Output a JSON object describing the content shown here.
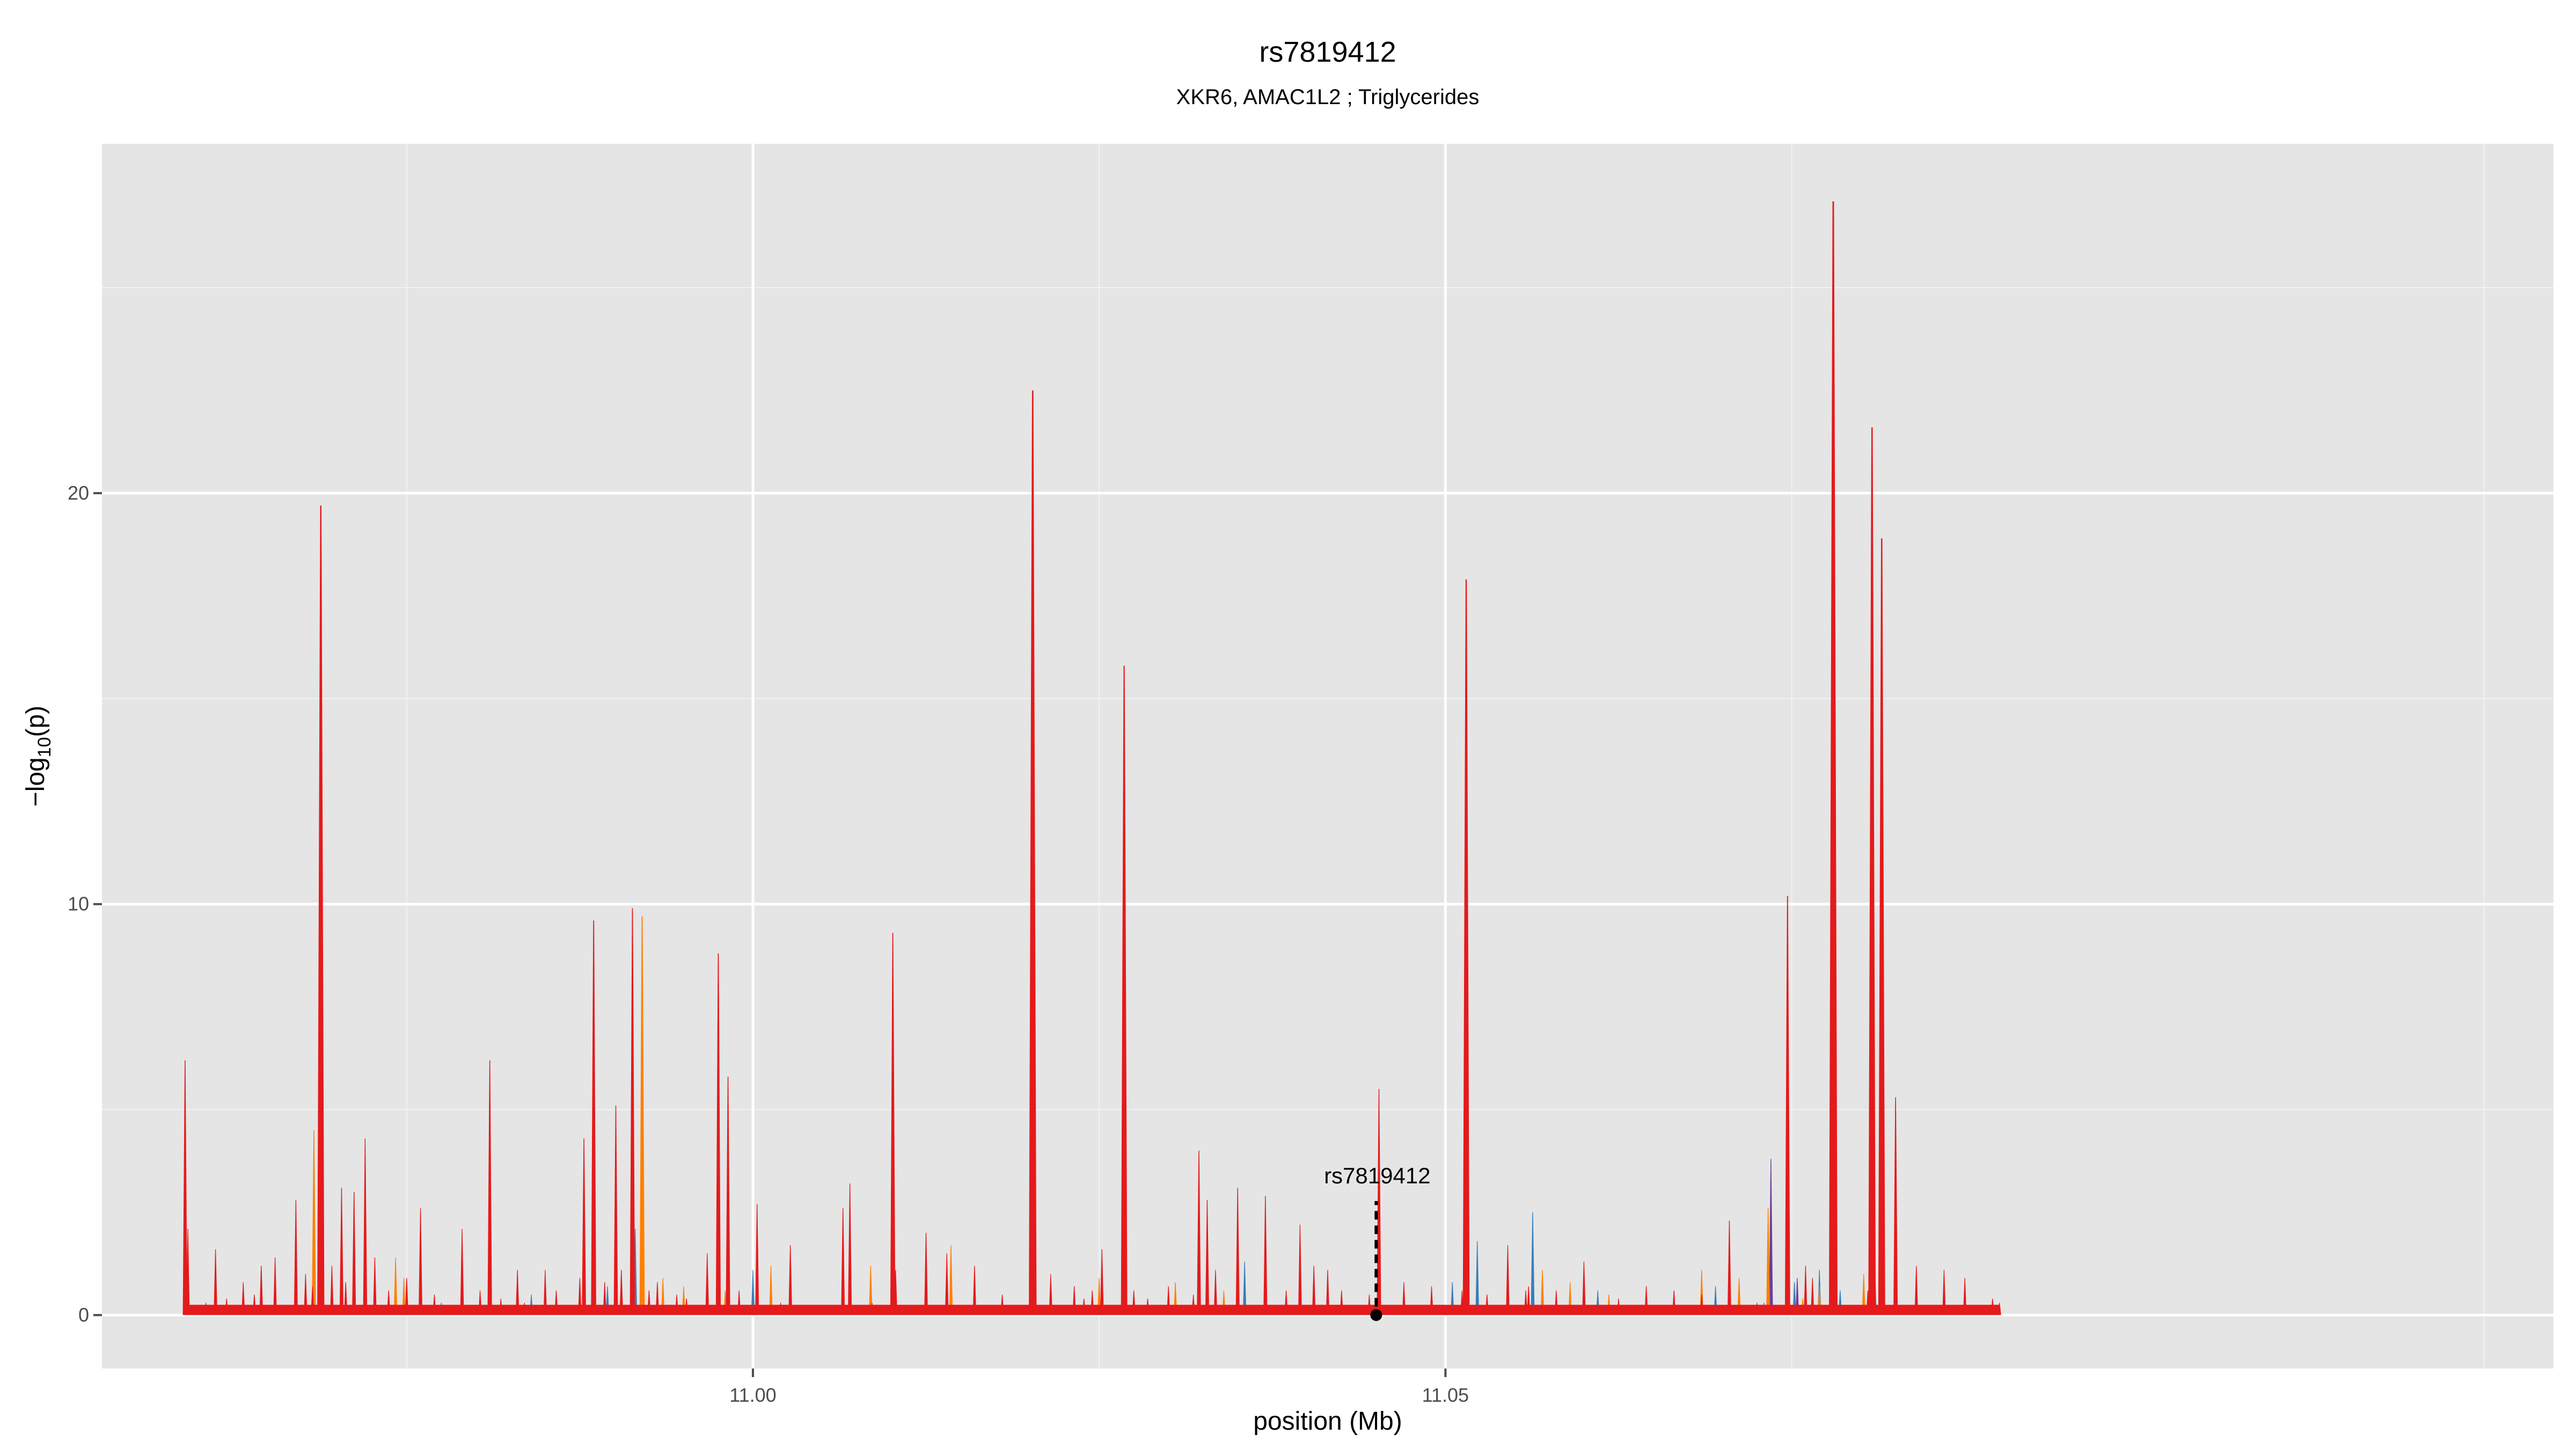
{
  "chart_data": {
    "type": "area",
    "title": "rs7819412",
    "subtitle": "XKR6, AMAC1L2 ; Triglycerides",
    "xlabel": "position (Mb)",
    "ylabel": "-log10(p)",
    "xlim": [
      10.953,
      11.13
    ],
    "ylim": [
      -1.3,
      28.5
    ],
    "x_ticks": [
      {
        "value": 11.0,
        "label": "11.00"
      },
      {
        "value": 11.05,
        "label": "11.05"
      }
    ],
    "y_ticks": [
      {
        "value": 0,
        "label": "0"
      },
      {
        "value": 10,
        "label": "10"
      },
      {
        "value": 20,
        "label": "20"
      }
    ],
    "grid": true,
    "colors": {
      "panel": "#e5e5e5",
      "grid": "#ffffff",
      "red": "#e41a1c",
      "orange": "#ff7f00",
      "blue": "#377eb8",
      "purple": "#6a3d9a"
    },
    "series": [
      {
        "color": "red",
        "x": [
          10.959,
          10.9592,
          10.9605,
          10.9612,
          10.962,
          10.9632,
          10.964,
          10.9645,
          10.9655,
          10.967,
          10.9677,
          10.9682,
          10.9688,
          10.9696,
          10.9703,
          10.9706,
          10.9712,
          10.972,
          10.9727,
          10.9737,
          10.975,
          10.976,
          10.977,
          10.979,
          10.9803,
          10.981,
          10.9818,
          10.983,
          10.9835,
          10.985,
          10.9858,
          10.9875,
          10.9878,
          10.9885,
          10.9893,
          10.9901,
          10.9905,
          10.9913,
          10.9925,
          10.9931,
          10.9945,
          10.9952,
          10.9967,
          10.9975,
          10.9982,
          10.999,
          11.0003,
          11.002,
          11.0027,
          11.0065,
          11.007,
          11.0086,
          11.0101,
          11.0103,
          11.0125,
          11.014,
          11.016,
          11.018,
          11.0202,
          11.0215,
          11.0232,
          11.0239,
          11.0245,
          11.0252,
          11.0268,
          11.0275,
          11.0285,
          11.03,
          11.0318,
          11.0322,
          11.0328,
          11.0334,
          11.035,
          11.037,
          11.0385,
          11.0395,
          11.0405,
          11.0415,
          11.0425,
          11.0445,
          11.0452,
          11.047,
          11.049,
          11.0512,
          11.0515,
          11.053,
          11.0545,
          11.0558,
          11.056,
          11.058,
          11.06,
          11.0625,
          11.0645,
          11.0665,
          11.0685,
          11.0705,
          11.0725,
          11.0743,
          11.0747,
          11.076,
          11.0765,
          11.0778,
          11.078,
          11.0805,
          11.0808,
          11.0815,
          11.0825,
          11.084,
          11.086,
          11.0875,
          11.0895,
          11.09
        ],
        "y": [
          6.2,
          2.1,
          0.3,
          1.6,
          0.4,
          0.8,
          0.5,
          1.2,
          1.4,
          2.8,
          1.0,
          0.7,
          19.7,
          1.2,
          3.1,
          0.8,
          3.0,
          4.3,
          1.4,
          0.6,
          0.9,
          2.6,
          0.5,
          2.1,
          0.6,
          6.2,
          0.4,
          1.1,
          0.3,
          1.1,
          0.6,
          0.9,
          4.3,
          9.6,
          0.8,
          5.1,
          1.1,
          9.9,
          0.6,
          0.8,
          0.5,
          0.4,
          1.5,
          8.8,
          5.8,
          0.6,
          2.7,
          0.3,
          1.7,
          2.6,
          3.2,
          0.3,
          9.3,
          1.1,
          2.0,
          1.5,
          1.2,
          0.5,
          22.5,
          1.0,
          0.7,
          0.4,
          0.6,
          1.6,
          15.8,
          0.6,
          0.4,
          0.7,
          0.5,
          4.0,
          2.8,
          1.1,
          3.1,
          2.9,
          0.6,
          2.2,
          1.2,
          1.1,
          0.6,
          0.5,
          5.5,
          0.8,
          0.7,
          0.6,
          17.9,
          0.5,
          1.7,
          0.6,
          0.7,
          0.6,
          1.3,
          0.4,
          0.7,
          0.6,
          0.5,
          2.3,
          0.3,
          0.2,
          10.2,
          1.2,
          0.9,
          0.4,
          27.1,
          0.6,
          21.6,
          18.9,
          5.3,
          1.2,
          1.1,
          0.9,
          0.4,
          0.3
        ]
      },
      {
        "color": "orange",
        "x": [
          10.9683,
          10.9742,
          10.9748,
          10.9885,
          10.992,
          10.9935,
          10.995,
          10.998,
          11.0013,
          11.0085,
          11.0143,
          11.025,
          11.0305,
          11.034,
          11.057,
          11.059,
          11.0618,
          11.0685,
          11.0712,
          11.0733,
          11.0758,
          11.077,
          11.0778,
          11.0802
        ],
        "y": [
          4.5,
          1.4,
          0.9,
          1.9,
          9.7,
          0.9,
          0.7,
          0.6,
          1.2,
          1.2,
          1.7,
          0.9,
          0.8,
          0.6,
          1.1,
          0.8,
          0.5,
          1.1,
          0.9,
          2.6,
          0.4,
          0.7,
          1.3,
          1.0
        ]
      },
      {
        "color": "blue",
        "x": [
          10.9645,
          10.9712,
          10.9775,
          10.984,
          10.9895,
          10.9915,
          11.0,
          11.0085,
          11.0355,
          11.0395,
          11.0505,
          11.0523,
          11.0563,
          11.061,
          11.0695,
          11.073,
          11.0752,
          11.077,
          11.0785,
          11.081
        ],
        "y": [
          1.2,
          0.5,
          0.3,
          0.5,
          0.7,
          2.1,
          1.1,
          0.7,
          1.3,
          0.6,
          0.8,
          1.8,
          2.5,
          0.6,
          0.7,
          0.3,
          0.8,
          1.1,
          0.6,
          1.2
        ]
      },
      {
        "color": "purple",
        "x": [
          11.0735,
          11.0754
        ],
        "y": [
          3.8,
          0.9
        ]
      }
    ],
    "annotation": {
      "label": "rs7819412",
      "x": 11.045,
      "y": 0
    }
  }
}
